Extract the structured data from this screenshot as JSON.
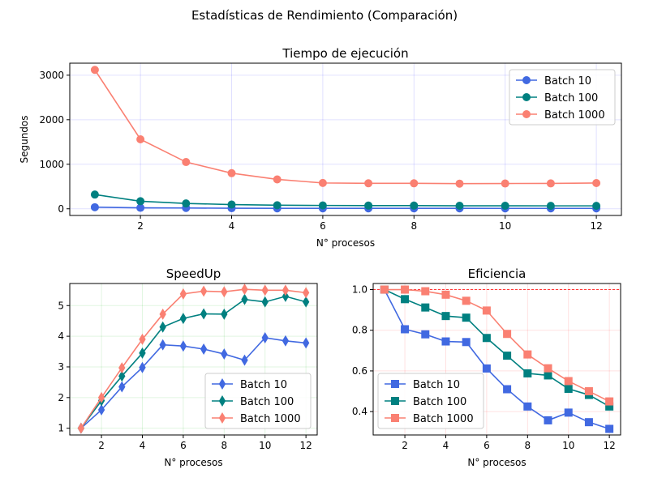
{
  "figure_title": "Estadísticas de Rendimiento (Comparación)",
  "chart_data": [
    {
      "type": "line",
      "title": "Tiempo de ejecución",
      "xlabel": "N° procesos",
      "ylabel": "Segundos",
      "xlim": [
        0.45,
        12.55
      ],
      "ylim": [
        -150,
        3270
      ],
      "xticks": [
        2,
        4,
        6,
        8,
        10,
        12
      ],
      "yticks": [
        0,
        1000,
        2000,
        3000
      ],
      "grid": true,
      "grid_color": "#0000ff",
      "legend": "top-right",
      "marker": "circle",
      "x": [
        1,
        2,
        3,
        4,
        5,
        6,
        7,
        8,
        9,
        10,
        11,
        12
      ],
      "series": [
        {
          "name": "Batch 10",
          "color": "#4169e1",
          "values": [
            35,
            22,
            18,
            13,
            10,
            10,
            10,
            10,
            10,
            9,
            9,
            9
          ]
        },
        {
          "name": "Batch 100",
          "color": "#008080",
          "values": [
            320,
            170,
            120,
            95,
            80,
            75,
            72,
            72,
            68,
            68,
            66,
            66
          ]
        },
        {
          "name": "Batch 1000",
          "color": "#fa8072",
          "values": [
            3120,
            1560,
            1050,
            800,
            660,
            580,
            572,
            572,
            565,
            568,
            570,
            578
          ]
        }
      ]
    },
    {
      "type": "line",
      "title": "SpeedUp",
      "xlabel": "N° procesos",
      "ylabel": "",
      "xlim": [
        0.45,
        12.55
      ],
      "ylim": [
        0.78,
        5.72
      ],
      "xticks": [
        2,
        4,
        6,
        8,
        10,
        12
      ],
      "yticks": [
        1,
        2,
        3,
        4,
        5
      ],
      "grid": true,
      "grid_color": "#00aa00",
      "legend": "lower-right",
      "marker": "thin_diamond",
      "x": [
        1,
        2,
        3,
        4,
        5,
        6,
        7,
        8,
        9,
        10,
        11,
        12
      ],
      "series": [
        {
          "name": "Batch 10",
          "color": "#4169e1",
          "values": [
            1.0,
            1.6,
            2.35,
            2.98,
            3.72,
            3.68,
            3.58,
            3.42,
            3.22,
            3.95,
            3.85,
            3.78
          ]
        },
        {
          "name": "Batch 100",
          "color": "#008080",
          "values": [
            1.0,
            1.9,
            2.7,
            3.45,
            4.3,
            4.58,
            4.73,
            4.72,
            5.2,
            5.12,
            5.3,
            5.12
          ]
        },
        {
          "name": "Batch 1000",
          "color": "#fa8072",
          "values": [
            1.0,
            2.0,
            2.97,
            3.9,
            4.72,
            5.38,
            5.47,
            5.45,
            5.53,
            5.5,
            5.5,
            5.42
          ]
        }
      ]
    },
    {
      "type": "line",
      "title": "Eficiencia",
      "xlabel": "N° procesos",
      "ylabel": "",
      "xlim": [
        0.45,
        12.55
      ],
      "ylim": [
        0.285,
        1.03
      ],
      "xticks": [
        2,
        4,
        6,
        8,
        10,
        12
      ],
      "yticks": [
        0.4,
        0.6,
        0.8,
        1.0
      ],
      "ytick_labels": [
        "0.4",
        "0.6",
        "0.8",
        "1.0"
      ],
      "grid": true,
      "grid_color": "#ff0000",
      "legend": "lower-left",
      "marker": "square",
      "reference_line": {
        "y": 1.0,
        "color": "#ff0000",
        "style": "dashed"
      },
      "x": [
        1,
        2,
        3,
        4,
        5,
        6,
        7,
        8,
        9,
        10,
        11,
        12
      ],
      "series": [
        {
          "name": "Batch 10",
          "color": "#4169e1",
          "values": [
            1.0,
            0.805,
            0.78,
            0.745,
            0.742,
            0.612,
            0.51,
            0.425,
            0.357,
            0.395,
            0.348,
            0.315
          ]
        },
        {
          "name": "Batch 100",
          "color": "#008080",
          "values": [
            1.0,
            0.953,
            0.912,
            0.87,
            0.862,
            0.762,
            0.675,
            0.588,
            0.578,
            0.512,
            0.482,
            0.425
          ]
        },
        {
          "name": "Batch 1000",
          "color": "#fa8072",
          "values": [
            1.0,
            1.0,
            0.992,
            0.975,
            0.945,
            0.897,
            0.782,
            0.681,
            0.613,
            0.55,
            0.5,
            0.45
          ]
        }
      ]
    }
  ]
}
